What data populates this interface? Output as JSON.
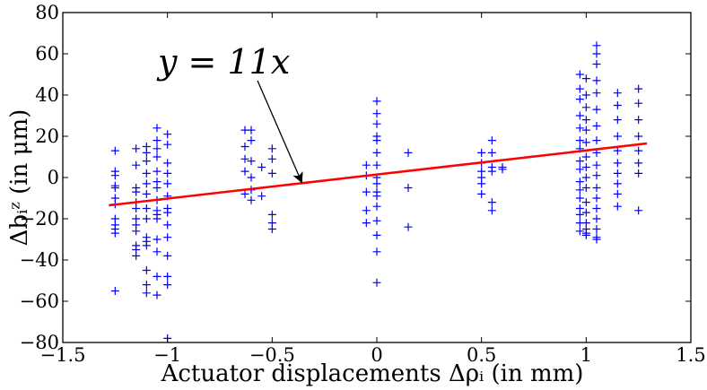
{
  "chart_data": {
    "type": "scatter",
    "title": "",
    "xlabel": "Actuator displacements Δρᵢ (in mm)",
    "ylabel": "Δbᵢᶻ (in μm)",
    "xlim": [
      -1.5,
      1.5
    ],
    "ylim": [
      -80,
      80
    ],
    "x_ticks": [
      -1.5,
      -1.0,
      -0.5,
      0.0,
      0.5,
      1.0,
      1.5
    ],
    "x_tick_labels": [
      "−1.5",
      "−1",
      "−0.5",
      "0",
      "0.5",
      "1",
      "1.5"
    ],
    "y_ticks": [
      -80,
      -60,
      -40,
      -20,
      0,
      20,
      40,
      60,
      80
    ],
    "y_tick_labels": [
      "−80",
      "−60",
      "−40",
      "−20",
      "0",
      "20",
      "40",
      "60",
      "80"
    ],
    "grid": false,
    "colors": {
      "points": "#0000ff",
      "fit_line": "#ff0000",
      "axes": "#000000"
    },
    "series": [
      {
        "marker": "+",
        "x": [
          -1.25,
          -1.25,
          -1.25,
          -1.25,
          -1.25,
          -1.25,
          -1.25,
          -1.25,
          -1.25,
          -1.25,
          -1.25,
          -1.25,
          -1.15,
          -1.15,
          -1.15,
          -1.15,
          -1.15,
          -1.15,
          -1.15,
          -1.15,
          -1.15,
          -1.15,
          -1.15,
          -1.15,
          -1.1,
          -1.1,
          -1.1,
          -1.1,
          -1.1,
          -1.1,
          -1.1,
          -1.1,
          -1.1,
          -1.1,
          -1.1,
          -1.1,
          -1.1,
          -1.1,
          -1.05,
          -1.05,
          -1.05,
          -1.05,
          -1.05,
          -1.05,
          -1.05,
          -1.05,
          -1.05,
          -1.05,
          -1.05,
          -1.05,
          -1.05,
          -1.05,
          -1.05,
          -1.0,
          -1.0,
          -1.0,
          -1.0,
          -1.0,
          -1.0,
          -1.0,
          -1.0,
          -1.0,
          -1.0,
          -1.0,
          -1.0,
          -1.0,
          -1.0,
          -0.63,
          -0.63,
          -0.63,
          -0.63,
          -0.63,
          -0.6,
          -0.6,
          -0.6,
          -0.6,
          -0.6,
          -0.6,
          -0.55,
          -0.55,
          -0.5,
          -0.5,
          -0.5,
          -0.5,
          -0.5,
          -0.5,
          -0.05,
          -0.05,
          -0.05,
          -0.05,
          -0.05,
          0.0,
          0.0,
          0.0,
          0.0,
          0.0,
          0.0,
          0.0,
          0.0,
          0.0,
          0.0,
          0.0,
          0.0,
          0.0,
          0.0,
          0.0,
          0.0,
          0.15,
          0.15,
          0.15,
          0.5,
          0.5,
          0.5,
          0.5,
          0.5,
          0.5,
          0.55,
          0.55,
          0.55,
          0.55,
          0.55,
          0.55,
          0.6,
          0.6,
          0.97,
          0.97,
          0.97,
          0.97,
          0.97,
          0.97,
          0.97,
          0.97,
          0.97,
          0.97,
          0.97,
          0.97,
          0.97,
          0.97,
          0.97,
          0.97,
          1.0,
          1.0,
          1.0,
          1.0,
          1.0,
          1.0,
          1.0,
          1.0,
          1.0,
          1.0,
          1.0,
          1.0,
          1.0,
          1.0,
          1.0,
          1.0,
          1.05,
          1.05,
          1.05,
          1.05,
          1.05,
          1.05,
          1.05,
          1.05,
          1.05,
          1.05,
          1.05,
          1.05,
          1.05,
          1.05,
          1.05,
          1.05,
          1.05,
          1.05,
          1.15,
          1.15,
          1.15,
          1.15,
          1.15,
          1.15,
          1.15,
          1.15,
          1.15,
          1.15,
          1.25,
          1.25,
          1.25,
          1.25,
          1.25,
          1.25,
          1.25,
          1.25
        ],
        "y": [
          13,
          3,
          1,
          -4,
          -5,
          -10,
          -13,
          -20,
          -23,
          -25,
          -27,
          -55,
          14,
          6,
          -5,
          -7,
          -12,
          -15,
          -20,
          -23,
          -26,
          -33,
          -35,
          -38,
          15,
          12,
          8,
          2,
          -3,
          -8,
          -15,
          -20,
          -29,
          -31,
          -33,
          -45,
          -52,
          -56,
          24,
          18,
          14,
          10,
          3,
          -2,
          -5,
          -11,
          -16,
          -18,
          -20,
          -30,
          -36,
          -48,
          -57,
          21,
          16,
          7,
          2,
          -3,
          -9,
          -15,
          -17,
          -23,
          -29,
          -38,
          -48,
          -52,
          -78,
          23,
          15,
          9,
          3,
          -8,
          23,
          18,
          8,
          0,
          -6,
          -11,
          5,
          -9,
          14,
          9,
          2,
          -18,
          -22,
          -25,
          6,
          1,
          -7,
          -16,
          -22,
          37,
          31,
          26,
          20,
          18,
          12,
          6,
          0,
          -3,
          -7,
          -9,
          -14,
          -21,
          -28,
          -36,
          -51,
          12,
          -5,
          -24,
          12,
          7,
          3,
          0,
          -3,
          -8,
          18,
          12,
          5,
          3,
          -12,
          -16,
          5,
          4,
          50,
          43,
          38,
          30,
          24,
          18,
          14,
          8,
          4,
          -2,
          -6,
          -10,
          -15,
          -18,
          -22,
          -26,
          48,
          40,
          34,
          28,
          23,
          17,
          10,
          5,
          0,
          -5,
          -12,
          -17,
          -22,
          -25,
          -27,
          -28,
          64,
          60,
          55,
          47,
          41,
          33,
          25,
          18,
          12,
          6,
          1,
          -5,
          -10,
          -15,
          -20,
          -25,
          -29,
          -30,
          41,
          35,
          28,
          20,
          13,
          7,
          2,
          -3,
          -8,
          -14,
          43,
          36,
          28,
          20,
          13,
          7,
          2,
          -16
        ]
      },
      {
        "type": "line",
        "x": [
          -1.28,
          1.29
        ],
        "y": [
          -13.5,
          16.5
        ]
      }
    ],
    "annotations": [
      {
        "text": "y = 11x",
        "arrow_from": [
          -0.57,
          47
        ],
        "arrow_to": [
          -0.36,
          -2
        ]
      }
    ]
  }
}
